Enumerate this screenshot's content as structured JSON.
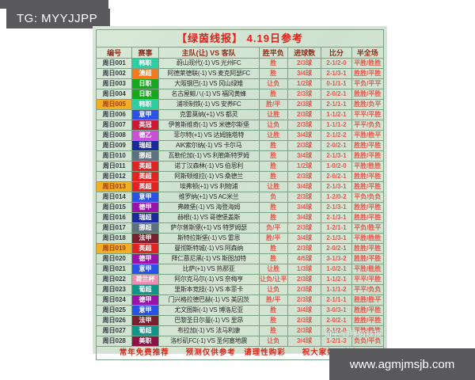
{
  "overlay": {
    "tg_label": "TG: MYYJJPP",
    "site_label": "www.agmjmsjb.com"
  },
  "table": {
    "title": "【绿茵线报】 4.19日参考",
    "headers": [
      "编号",
      "赛事",
      "主队(让) VS 客队",
      "胜平负",
      "进球数",
      "比分",
      "半全场"
    ],
    "footer": "常年免费推荐　　预测仅供参考　请理性购彩　　祝大家好运长虹",
    "watermark": "知乎 @绿茵线报",
    "colors": {
      "title_red": "#e41f1a",
      "header_text": "#8f2f1c",
      "value_red": "#e05a50",
      "highlight_bg": "#f2ae24",
      "grid_green": "#79a287",
      "bg_green": "#d2e4d2"
    },
    "league_colors": {
      "韩职": "#2bcfa2",
      "澳超": "#f5791d",
      "日职": "#17a81e",
      "意甲": "#2a52e8",
      "英冠": "#d01535",
      "德乙": "#c94fd6",
      "瑞超": "#1a2a9e",
      "挪超": "#5d6f80",
      "英超": "#e32222",
      "德甲": "#9b12a8",
      "法甲": "#7c1f2e",
      "荷兰杯": "#f08ab0",
      "葡超": "#0f9488",
      "美职": "#8f1045"
    },
    "rows": [
      {
        "no": "周日001",
        "league": "韩职",
        "match": "蔚山现代(-1) VS 光州FC",
        "wdl": "胜",
        "goals": "2/3球",
        "score": "2-1/2-0",
        "htft": "平胜/胜胜",
        "highlight": false
      },
      {
        "no": "周日002",
        "league": "澳超",
        "match": "阿德莱德联(-1) VS 麦克阿瑟FC",
        "wdl": "胜",
        "goals": "3/4球",
        "score": "2-1/3-1",
        "htft": "胜胜/平胜",
        "highlight": false
      },
      {
        "no": "周日003",
        "league": "日职",
        "match": "大阪钢巴(-1) VS 冈山绿雉",
        "wdl": "让负",
        "goals": "1/2球",
        "score": "0-1/1-1",
        "htft": "平负/平平",
        "highlight": false
      },
      {
        "no": "周日004",
        "league": "日职",
        "match": "名古屋鲸八(-1) VS 福冈黄蜂",
        "wdl": "胜",
        "goals": "2/3球",
        "score": "2-0/2-1",
        "htft": "胜胜/平胜",
        "highlight": false
      },
      {
        "no": "周日005",
        "league": "韩职",
        "match": "浦项制铁(-1) VS 安养FC",
        "wdl": "胜/平",
        "goals": "2/3球",
        "score": "2-1/1-1",
        "htft": "胜胜/负平",
        "highlight": true
      },
      {
        "no": "周日006",
        "league": "意甲",
        "match": "克雷莫纳(+1) VS 都灵",
        "wdl": "让胜",
        "goals": "2/3球",
        "score": "1-1/2-1",
        "htft": "平平/平胜",
        "highlight": false
      },
      {
        "no": "周日007",
        "league": "英冠",
        "match": "伊普斯维奇(-1) VS 米德尔斯堡",
        "wdl": "让负",
        "goals": "2/3球",
        "score": "1-1/1-2",
        "htft": "平平/负负",
        "highlight": false
      },
      {
        "no": "周日008",
        "league": "德乙",
        "match": "菲尔特(+1) VS 达姆施塔特",
        "wdl": "让胜",
        "goals": "3/4球",
        "score": "2-1/2-2",
        "htft": "平胜/胜平",
        "highlight": false
      },
      {
        "no": "周日009",
        "league": "瑞超",
        "match": "AIK索尔纳(-1) VS 卡尔马",
        "wdl": "胜",
        "goals": "2/3球",
        "score": "2-0/2-1",
        "htft": "胜胜/平胜",
        "highlight": false
      },
      {
        "no": "周日010",
        "league": "挪超",
        "match": "瓦勒伦加(-1) VS 利勒斯特罗姆",
        "wdl": "胜",
        "goals": "3/4球",
        "score": "2-1/3-1",
        "htft": "胜胜/平胜",
        "highlight": false
      },
      {
        "no": "周日011",
        "league": "英超",
        "match": "诺丁汉森林(-1) VS 伯恩利",
        "wdl": "胜",
        "goals": "1/2球",
        "score": "1-0/2-0",
        "htft": "平胜/胜胜",
        "highlight": false
      },
      {
        "no": "周日012",
        "league": "英超",
        "match": "阿斯顿维拉(-1) VS 桑德兰",
        "wdl": "胜",
        "goals": "2/3球",
        "score": "2-0/2-1",
        "htft": "胜胜/平胜",
        "highlight": false
      },
      {
        "no": "周日013",
        "league": "英超",
        "match": "埃弗顿(+1) VS 利物浦",
        "wdl": "让胜",
        "goals": "3/4球",
        "score": "2-1/3-1",
        "htft": "胜胜/平胜",
        "highlight": true
      },
      {
        "no": "周日014",
        "league": "意甲",
        "match": "维罗纳(+1) VS AC米兰",
        "wdl": "负",
        "goals": "2/3球",
        "score": "1-2/0-2",
        "htft": "平负/负负",
        "highlight": false
      },
      {
        "no": "周日015",
        "league": "德甲",
        "match": "弗赖堡(-1) VS 海登海姆",
        "wdl": "胜",
        "goals": "3/4球",
        "score": "2-1/3-1",
        "htft": "胜胜/平胜",
        "highlight": false
      },
      {
        "no": "周日016",
        "league": "瑞超",
        "match": "赫根(-1) VS 哥德堡盖斯",
        "wdl": "胜",
        "goals": "3/4球",
        "score": "2-1/3-1",
        "htft": "胜胜/平胜",
        "highlight": false
      },
      {
        "no": "周日017",
        "league": "挪超",
        "match": "萨尔普斯堡(+1) VS 特罗姆瑟",
        "wdl": "负/平",
        "goals": "2/3球",
        "score": "1-2/1-1",
        "htft": "平负/胜平",
        "highlight": false
      },
      {
        "no": "周日018",
        "league": "法甲",
        "match": "斯特拉斯堡(-1) VS 雷恩",
        "wdl": "胜/平",
        "goals": "3/4球",
        "score": "2-1/3-1",
        "htft": "平胜/胜胜",
        "highlight": false
      },
      {
        "no": "周日019",
        "league": "英超",
        "match": "曼彻斯特城(-1) VS 阿森纳",
        "wdl": "胜",
        "goals": "2/3球",
        "score": "2-0/2-1",
        "htft": "胜胜/平胜",
        "highlight": true
      },
      {
        "no": "周日020",
        "league": "德甲",
        "match": "拜仁慕尼黑(-1) VS 斯图加特",
        "wdl": "胜",
        "goals": "4/5球",
        "score": "3-1/3-2",
        "htft": "胜胜/平胜",
        "highlight": false
      },
      {
        "no": "周日021",
        "league": "意甲",
        "match": "比萨(+1) VS 热那亚",
        "wdl": "让胜",
        "goals": "1/3球",
        "score": "1-0/2-1",
        "htft": "平胜/胜胜",
        "highlight": false
      },
      {
        "no": "周日022",
        "league": "荷兰杯",
        "match": "阿尔克马尔(-1) VS 奈梅亨",
        "wdl": "让负/让平",
        "goals": "2/3球",
        "score": "1-1/2-1",
        "htft": "平平/平胜",
        "highlight": false
      },
      {
        "no": "周日023",
        "league": "葡超",
        "match": "里斯本竞技(-1) VS 本菲卡",
        "wdl": "让负",
        "goals": "2/3球",
        "score": "1-1/1-2",
        "htft": "平平/负负",
        "highlight": false
      },
      {
        "no": "周日024",
        "league": "德甲",
        "match": "门兴格拉德巴赫(-1) VS 美因茨",
        "wdl": "胜/平",
        "goals": "2/3球",
        "score": "2-1/1-1",
        "htft": "胜胜/胜平",
        "highlight": false
      },
      {
        "no": "周日025",
        "league": "意甲",
        "match": "尤文图斯(-1) VS 博洛尼亚",
        "wdl": "胜",
        "goals": "3/4球",
        "score": "3-0/3-1",
        "htft": "胜胜/平胜",
        "highlight": false
      },
      {
        "no": "周日026",
        "league": "法甲",
        "match": "巴黎圣日尔曼(-1) VS 里昂",
        "wdl": "胜",
        "goals": "2/3球",
        "score": "2-0/2-1",
        "htft": "胜胜/平胜",
        "highlight": false
      },
      {
        "no": "周日027",
        "league": "葡超",
        "match": "布拉加(-1) VS 法马利康",
        "wdl": "胜",
        "goals": "2/3球",
        "score": "2-1/2-0",
        "htft": "平胜/胜胜",
        "highlight": false
      },
      {
        "no": "周日028",
        "league": "美职",
        "match": "洛杉矶FC(-1) VS 圣何塞地震",
        "wdl": "让负",
        "goals": "3/4球",
        "score": "1-2/1-3",
        "htft": "负负/平负",
        "highlight": false
      }
    ]
  }
}
